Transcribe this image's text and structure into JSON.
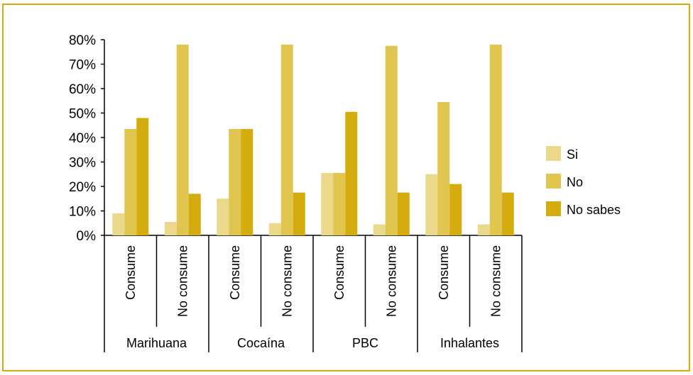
{
  "chart_data": {
    "type": "bar",
    "groups": [
      "Marihuana",
      "Cocaína",
      "PBC",
      "Inhalantes"
    ],
    "subcategories": [
      "Consume",
      "No consume"
    ],
    "categories": [
      "Marihuana - Consume",
      "Marihuana - No consume",
      "Cocaína - Consume",
      "Cocaína - No consume",
      "PBC - Consume",
      "PBC - No consume",
      "Inhalantes - Consume",
      "Inhalantes - No consume"
    ],
    "series": [
      {
        "name": "Si",
        "values": [
          9,
          5.5,
          15,
          5,
          25.5,
          4.5,
          25,
          4.5
        ],
        "color": "#ead98a"
      },
      {
        "name": "No",
        "values": [
          43.5,
          78,
          43.5,
          78,
          25.5,
          77.5,
          54.5,
          78
        ],
        "color": "#e0c54f"
      },
      {
        "name": "No sabes",
        "values": [
          48,
          17,
          43.5,
          17.5,
          50.5,
          17.5,
          21,
          17.5
        ],
        "color": "#d4ac0d"
      }
    ],
    "ylim": [
      0,
      80
    ],
    "yticks": [
      "0%",
      "10%",
      "20%",
      "30%",
      "40%",
      "50%",
      "60%",
      "70%",
      "80%"
    ],
    "legend_position": "right",
    "border_color": "#d4ac0d"
  }
}
